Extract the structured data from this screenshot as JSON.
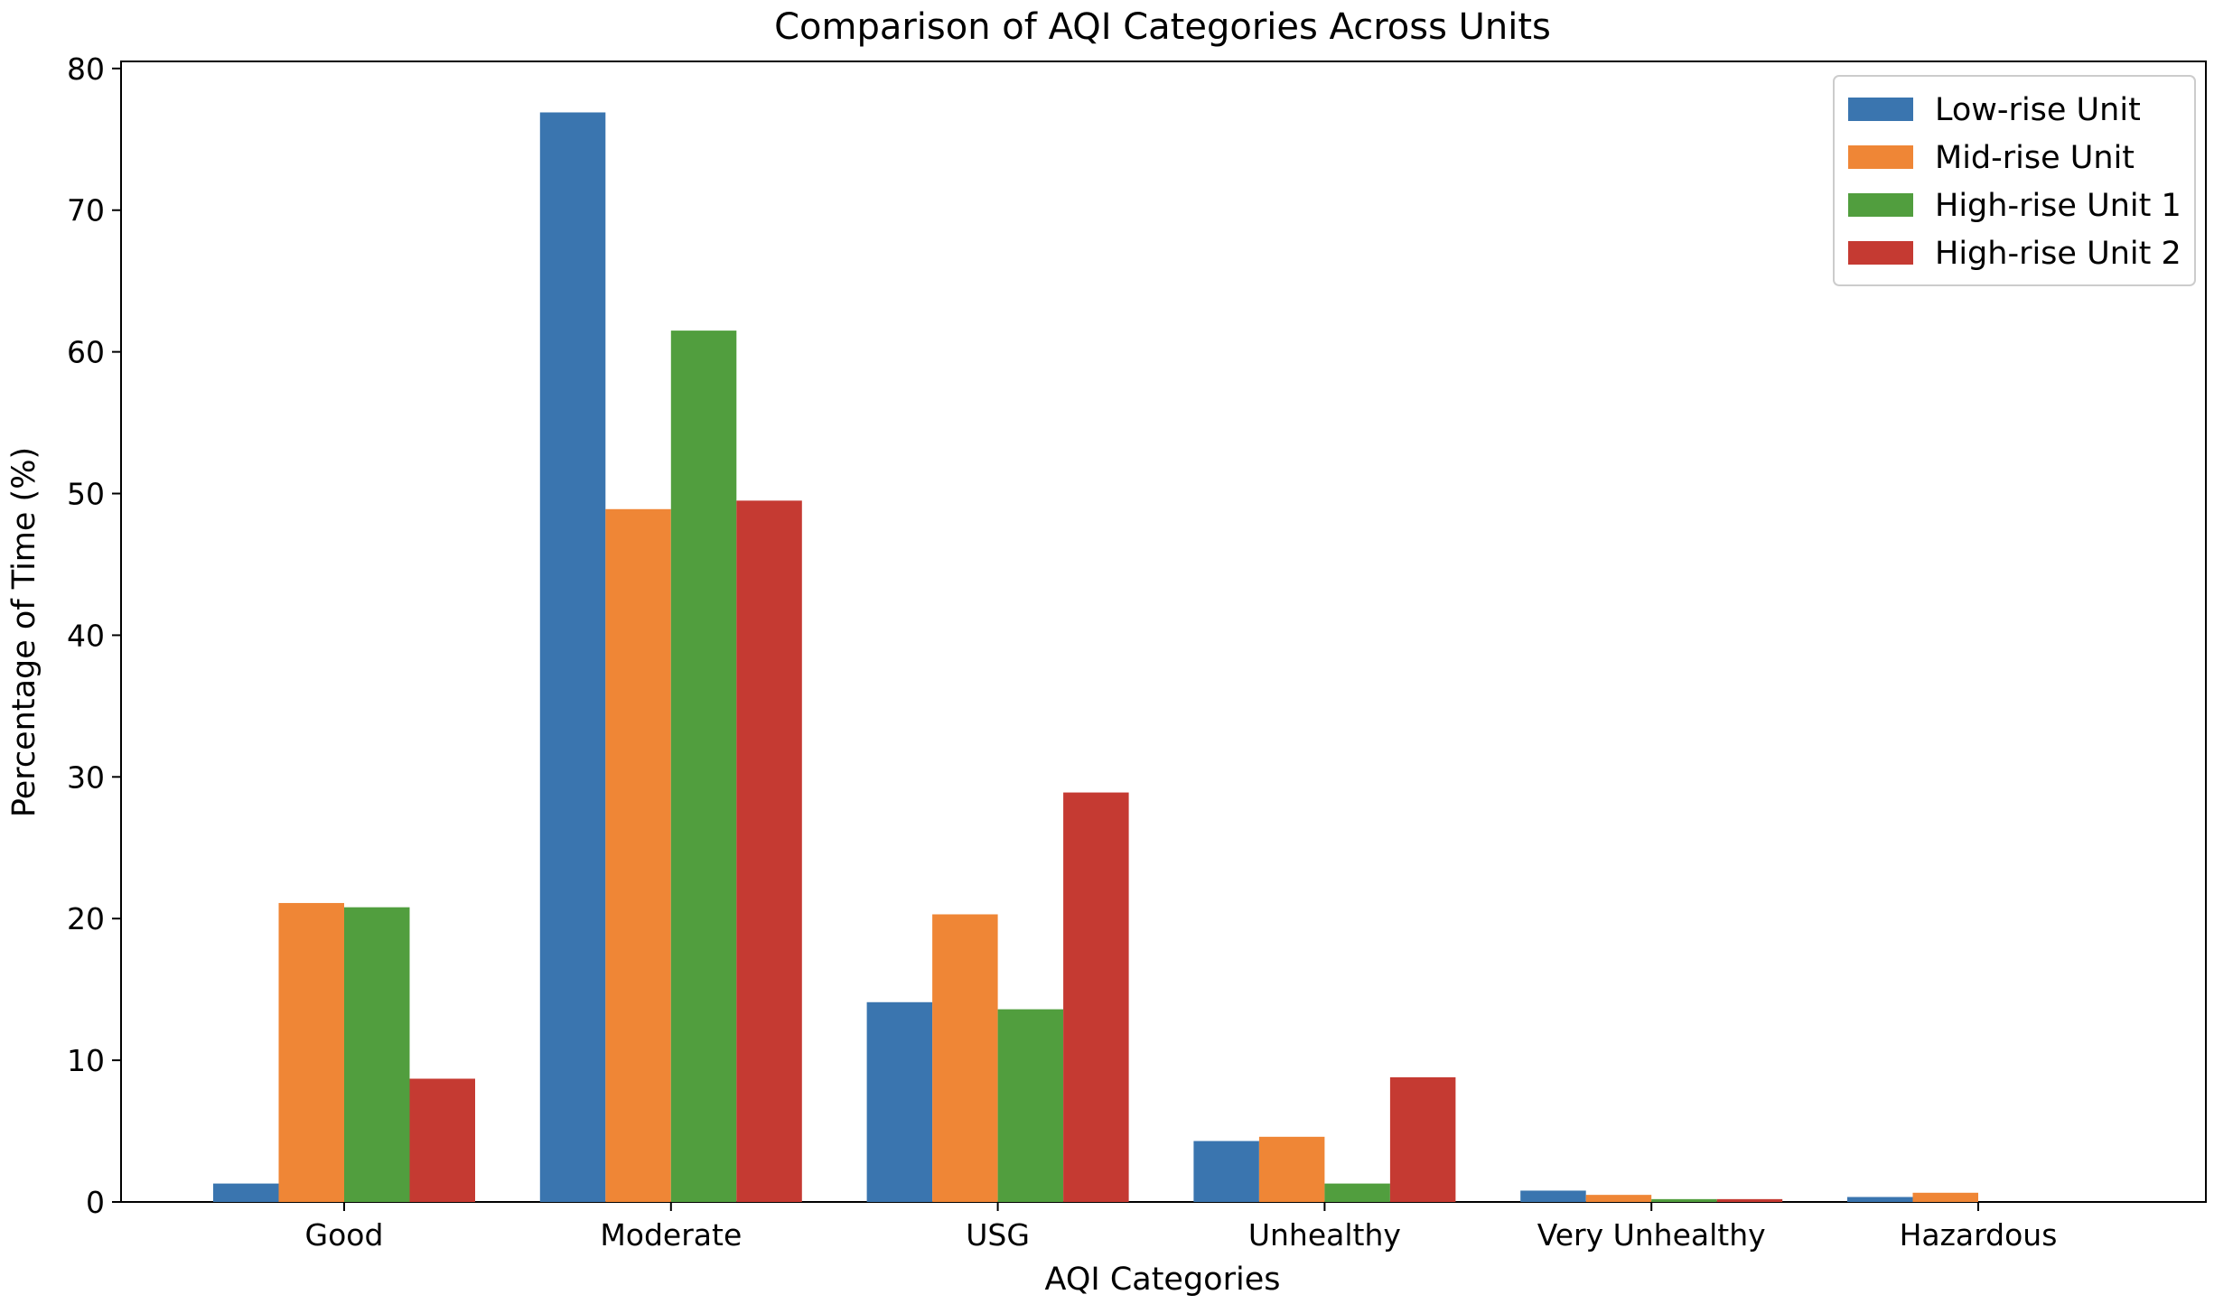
{
  "chart_data": {
    "type": "bar",
    "title": "Comparison of AQI Categories Across Units",
    "xlabel": "AQI Categories",
    "ylabel": "Percentage of Time (%)",
    "ylim": [
      0,
      80.5
    ],
    "yticks": [
      "0",
      "10",
      "20",
      "30",
      "40",
      "50",
      "60",
      "70",
      "80"
    ],
    "grid": false,
    "legend_position": "top-right",
    "categories": [
      "Good",
      "Moderate",
      "USG",
      "Unhealthy",
      "Very Unhealthy",
      "Hazardous"
    ],
    "series": [
      {
        "name": "Low-rise Unit",
        "color": "#3a75af",
        "values": [
          1.3,
          76.9,
          14.1,
          4.3,
          0.8,
          0.35
        ]
      },
      {
        "name": "Mid-rise Unit",
        "color": "#ef8636",
        "values": [
          21.1,
          48.9,
          20.3,
          4.6,
          0.5,
          0.65
        ]
      },
      {
        "name": "High-rise Unit 1",
        "color": "#519e3e",
        "values": [
          20.8,
          61.5,
          13.6,
          1.3,
          0.2,
          0.0
        ]
      },
      {
        "name": "High-rise Unit 2",
        "color": "#c53a32",
        "values": [
          8.7,
          49.5,
          28.9,
          8.8,
          0.2,
          0.0
        ]
      }
    ]
  }
}
